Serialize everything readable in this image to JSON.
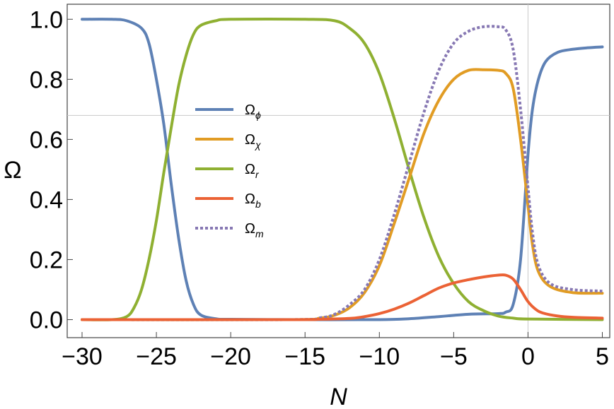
{
  "chart_data": {
    "type": "line",
    "xlabel": "N",
    "ylabel": "Ω",
    "xlim": [
      -31,
      5.5
    ],
    "ylim": [
      -0.06,
      1.05
    ],
    "xticks": [
      -30,
      -25,
      -20,
      -15,
      -10,
      -5,
      0,
      5
    ],
    "xtick_labels": [
      "−30",
      "−25",
      "−20",
      "−15",
      "−10",
      "−5",
      "0",
      "5"
    ],
    "yticks": [
      0.0,
      0.2,
      0.4,
      0.6,
      0.8,
      1.0
    ],
    "ytick_labels": [
      "0.0",
      "0.2",
      "0.4",
      "0.6",
      "0.8",
      "1.0"
    ],
    "hline": 0.68,
    "vline": 0,
    "legend_position": "center-left",
    "series": [
      {
        "name": "Ω",
        "subscript": "ϕ",
        "color": "#5e81b5",
        "dash": "solid",
        "points": [
          [
            -30,
            1.0
          ],
          [
            -28,
            1.0
          ],
          [
            -27,
            0.995
          ],
          [
            -26,
            0.97
          ],
          [
            -25.5,
            0.92
          ],
          [
            -25,
            0.8
          ],
          [
            -24.5,
            0.65
          ],
          [
            -24,
            0.45
          ],
          [
            -23.5,
            0.27
          ],
          [
            -23,
            0.13
          ],
          [
            -22.5,
            0.05
          ],
          [
            -22,
            0.015
          ],
          [
            -21,
            0.003
          ],
          [
            -20,
            0.001
          ],
          [
            -15,
            0.0
          ],
          [
            -10,
            0.0
          ],
          [
            -8,
            0.003
          ],
          [
            -6,
            0.01
          ],
          [
            -4,
            0.018
          ],
          [
            -2,
            0.02
          ],
          [
            -1.5,
            0.025
          ],
          [
            -1,
            0.05
          ],
          [
            -0.5,
            0.2
          ],
          [
            0,
            0.55
          ],
          [
            0.3,
            0.7
          ],
          [
            0.7,
            0.8
          ],
          [
            1.2,
            0.86
          ],
          [
            2,
            0.89
          ],
          [
            3,
            0.9
          ],
          [
            4,
            0.905
          ],
          [
            5,
            0.908
          ]
        ]
      },
      {
        "name": "Ω",
        "subscript": "χ",
        "color": "#e19c24",
        "dash": "solid",
        "points": [
          [
            -30,
            0.0
          ],
          [
            -16,
            0.0
          ],
          [
            -14,
            0.005
          ],
          [
            -13,
            0.015
          ],
          [
            -12,
            0.04
          ],
          [
            -11,
            0.09
          ],
          [
            -10,
            0.18
          ],
          [
            -9,
            0.32
          ],
          [
            -8,
            0.47
          ],
          [
            -7,
            0.62
          ],
          [
            -6,
            0.73
          ],
          [
            -5,
            0.8
          ],
          [
            -4,
            0.83
          ],
          [
            -3,
            0.832
          ],
          [
            -2,
            0.83
          ],
          [
            -1.5,
            0.82
          ],
          [
            -1,
            0.77
          ],
          [
            -0.5,
            0.6
          ],
          [
            0,
            0.38
          ],
          [
            0.3,
            0.25
          ],
          [
            0.7,
            0.16
          ],
          [
            1.5,
            0.11
          ],
          [
            3,
            0.09
          ],
          [
            5,
            0.088
          ]
        ]
      },
      {
        "name": "Ω",
        "subscript": "r",
        "color": "#8fb032",
        "dash": "solid",
        "points": [
          [
            -30,
            0.0
          ],
          [
            -28,
            0.0
          ],
          [
            -27,
            0.01
          ],
          [
            -26.5,
            0.04
          ],
          [
            -26,
            0.1
          ],
          [
            -25.5,
            0.2
          ],
          [
            -25,
            0.33
          ],
          [
            -24.5,
            0.49
          ],
          [
            -24,
            0.64
          ],
          [
            -23.5,
            0.78
          ],
          [
            -23,
            0.88
          ],
          [
            -22.5,
            0.95
          ],
          [
            -22,
            0.98
          ],
          [
            -21,
            0.995
          ],
          [
            -20,
            1.0
          ],
          [
            -15,
            1.0
          ],
          [
            -13,
            0.995
          ],
          [
            -12,
            0.97
          ],
          [
            -11,
            0.92
          ],
          [
            -10,
            0.82
          ],
          [
            -9,
            0.67
          ],
          [
            -8,
            0.5
          ],
          [
            -7,
            0.34
          ],
          [
            -6,
            0.21
          ],
          [
            -5,
            0.12
          ],
          [
            -4,
            0.06
          ],
          [
            -3,
            0.03
          ],
          [
            -2,
            0.012
          ],
          [
            -1,
            0.005
          ],
          [
            0,
            0.002
          ],
          [
            5,
            0.0
          ]
        ]
      },
      {
        "name": "Ω",
        "subscript": "b",
        "color": "#eb6235",
        "dash": "solid",
        "points": [
          [
            -30,
            0.0
          ],
          [
            -16,
            0.0
          ],
          [
            -14,
            0.001
          ],
          [
            -12,
            0.004
          ],
          [
            -11,
            0.01
          ],
          [
            -10,
            0.02
          ],
          [
            -9,
            0.035
          ],
          [
            -8,
            0.055
          ],
          [
            -7,
            0.08
          ],
          [
            -6,
            0.105
          ],
          [
            -5,
            0.122
          ],
          [
            -4,
            0.133
          ],
          [
            -3,
            0.142
          ],
          [
            -2,
            0.148
          ],
          [
            -1.5,
            0.148
          ],
          [
            -1,
            0.135
          ],
          [
            -0.5,
            0.1
          ],
          [
            0,
            0.06
          ],
          [
            0.5,
            0.035
          ],
          [
            1,
            0.022
          ],
          [
            2,
            0.012
          ],
          [
            3,
            0.008
          ],
          [
            5,
            0.005
          ]
        ]
      },
      {
        "name": "Ω",
        "subscript": "m",
        "color": "#8778b3",
        "dash": "dotted",
        "points": [
          [
            -30,
            0.0
          ],
          [
            -16,
            0.0
          ],
          [
            -14,
            0.006
          ],
          [
            -13,
            0.018
          ],
          [
            -12,
            0.05
          ],
          [
            -11,
            0.1
          ],
          [
            -10,
            0.2
          ],
          [
            -9,
            0.35
          ],
          [
            -8,
            0.52
          ],
          [
            -7,
            0.69
          ],
          [
            -6,
            0.83
          ],
          [
            -5,
            0.92
          ],
          [
            -4,
            0.96
          ],
          [
            -3,
            0.975
          ],
          [
            -2,
            0.975
          ],
          [
            -1.5,
            0.965
          ],
          [
            -1,
            0.9
          ],
          [
            -0.5,
            0.7
          ],
          [
            0,
            0.44
          ],
          [
            0.3,
            0.29
          ],
          [
            0.7,
            0.18
          ],
          [
            1.5,
            0.12
          ],
          [
            3,
            0.1
          ],
          [
            5,
            0.095
          ]
        ]
      }
    ]
  }
}
